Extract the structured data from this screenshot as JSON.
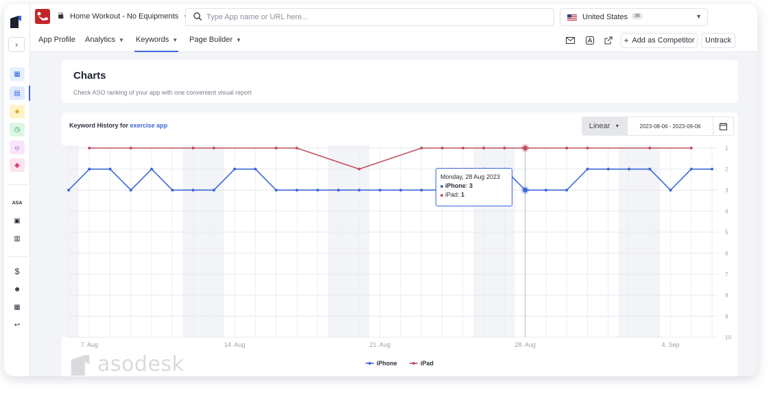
{
  "app": {
    "name": "Home Workout - No Equipments",
    "platform_icon": "apple-icon"
  },
  "search": {
    "placeholder": "Type App name or URL here..."
  },
  "country": {
    "name": "United States",
    "count": "38"
  },
  "nav": [
    {
      "label": "App Profile",
      "has_caret": false
    },
    {
      "label": "Analytics",
      "has_caret": true
    },
    {
      "label": "Keywords",
      "has_caret": true,
      "active": true
    },
    {
      "label": "Page Builder",
      "has_caret": true
    }
  ],
  "header_actions": {
    "add_competitor": "Add as Competitor",
    "untrack": "Untrack"
  },
  "page": {
    "title": "Charts",
    "subtitle": "Check ASO ranking of your app with one convenient visual report"
  },
  "keyword_history": {
    "prefix": "Keyword History for",
    "keyword": "exercise app",
    "scale": "Linear",
    "date_range": "2023-08-06 - 2023-09-06"
  },
  "tooltip": {
    "date": "Monday, 28 Aug 2023",
    "iphone_label": "iPhone",
    "iphone_value": "3",
    "ipad_label": "iPad",
    "ipad_value": "1"
  },
  "watermark": "asodesk",
  "colors": {
    "iphone": "#3a66d8",
    "ipad": "#c0505f",
    "accent": "#3a66d8"
  },
  "chart_data": {
    "type": "line",
    "title": "",
    "x": [
      "2023-08-06",
      "2023-08-07",
      "2023-08-08",
      "2023-08-09",
      "2023-08-10",
      "2023-08-11",
      "2023-08-12",
      "2023-08-13",
      "2023-08-14",
      "2023-08-15",
      "2023-08-16",
      "2023-08-17",
      "2023-08-18",
      "2023-08-19",
      "2023-08-20",
      "2023-08-21",
      "2023-08-22",
      "2023-08-23",
      "2023-08-24",
      "2023-08-25",
      "2023-08-26",
      "2023-08-27",
      "2023-08-28",
      "2023-08-29",
      "2023-08-30",
      "2023-08-31",
      "2023-09-01",
      "2023-09-02",
      "2023-09-03",
      "2023-09-04",
      "2023-09-05",
      "2023-09-06"
    ],
    "x_ticks": [
      "7. Aug",
      "14. Aug",
      "21. Aug",
      "28. Aug",
      "4. Sep"
    ],
    "y_ticks": [
      1,
      2,
      3,
      4,
      5,
      6,
      7,
      8,
      9,
      10
    ],
    "ylim": [
      1,
      10
    ],
    "y_reversed": true,
    "legend_position": "bottom-center",
    "series": [
      {
        "name": "iPhone",
        "values": [
          3,
          2,
          2,
          3,
          2,
          3,
          3,
          3,
          2,
          2,
          3,
          3,
          3,
          3,
          3,
          3,
          3,
          3,
          3,
          3,
          2,
          2,
          3,
          3,
          3,
          2,
          2,
          2,
          2,
          3,
          2,
          2
        ]
      },
      {
        "name": "iPad",
        "values": [
          null,
          1,
          null,
          1,
          null,
          null,
          1,
          1,
          null,
          null,
          1,
          1,
          null,
          null,
          2,
          null,
          null,
          1,
          1,
          1,
          1,
          1,
          1,
          null,
          1,
          1,
          null,
          null,
          1,
          null,
          1,
          null
        ]
      }
    ]
  }
}
